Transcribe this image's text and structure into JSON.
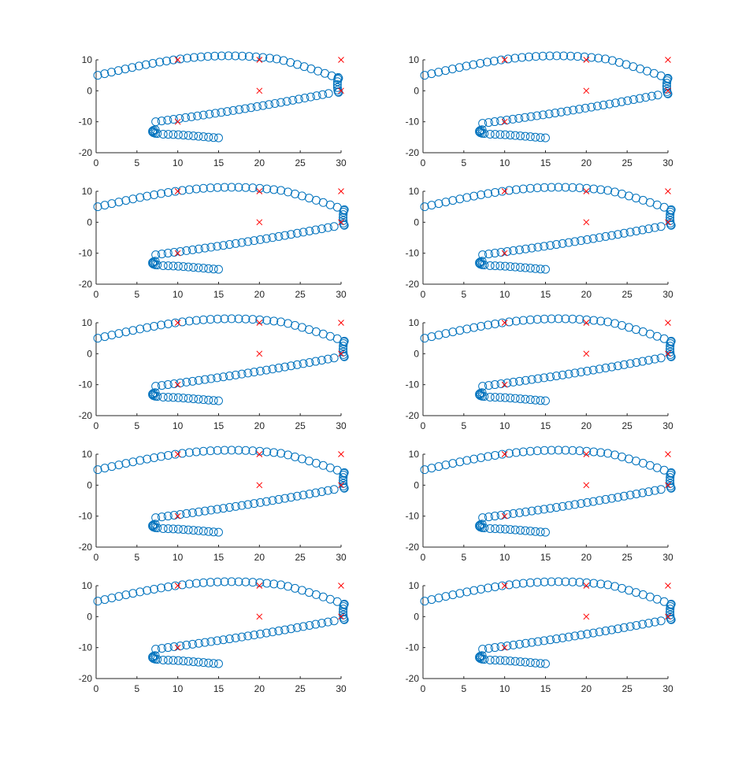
{
  "figure": {
    "background": "#ffffff",
    "grid_rows": 5,
    "grid_cols": 2
  },
  "style": {
    "marker_color": "#0072BD",
    "cross_color": "#FF0000",
    "axis_color": "#262626"
  },
  "chart_data": [
    {
      "type": "scatter",
      "xlim": [
        0,
        30
      ],
      "ylim": [
        -20,
        10
      ],
      "xticks": [
        "0",
        "5",
        "10",
        "15",
        "20",
        "25",
        "30"
      ],
      "yticks": [
        "-20",
        "-10",
        "0",
        "10"
      ],
      "grid": false,
      "title": "",
      "xlabel": "",
      "ylabel": "",
      "spiral": {
        "tip_x": 29.7,
        "tip_y": 2.5
      },
      "series": [
        {
          "marker": "o",
          "points": []
        },
        {
          "marker": "x",
          "points": [
            [
              10,
              10
            ],
            [
              20,
              10
            ],
            [
              30,
              10
            ],
            [
              20,
              0
            ],
            [
              30,
              0
            ],
            [
              10,
              -10
            ]
          ]
        }
      ]
    },
    {
      "type": "scatter",
      "xlim": [
        0,
        30
      ],
      "ylim": [
        -20,
        10
      ],
      "xticks": [
        "0",
        "5",
        "10",
        "15",
        "20",
        "25",
        "30"
      ],
      "yticks": [
        "-20",
        "-10",
        "0",
        "10"
      ],
      "grid": false,
      "title": "",
      "xlabel": "",
      "ylabel": "",
      "spiral": {
        "tip_x": 30.0,
        "tip_y": 2.0
      },
      "series": [
        {
          "marker": "o",
          "points": []
        },
        {
          "marker": "x",
          "points": [
            [
              10,
              10
            ],
            [
              20,
              10
            ],
            [
              30,
              10
            ],
            [
              20,
              0
            ],
            [
              30,
              0
            ],
            [
              10,
              -10
            ]
          ]
        }
      ]
    },
    {
      "type": "scatter",
      "xlim": [
        0,
        30
      ],
      "ylim": [
        -20,
        10
      ],
      "xticks": [
        "0",
        "5",
        "10",
        "15",
        "20",
        "25",
        "30"
      ],
      "yticks": [
        "-20",
        "-10",
        "0",
        "10"
      ],
      "grid": false,
      "title": "",
      "xlabel": "",
      "ylabel": "",
      "spiral": {
        "tip_x": 30.4,
        "tip_y": 2.0
      },
      "series": [
        {
          "marker": "o",
          "points": []
        },
        {
          "marker": "x",
          "points": [
            [
              10,
              10
            ],
            [
              20,
              10
            ],
            [
              30,
              10
            ],
            [
              20,
              0
            ],
            [
              30,
              0
            ],
            [
              10,
              -10
            ]
          ]
        }
      ]
    },
    {
      "type": "scatter",
      "xlim": [
        0,
        30
      ],
      "ylim": [
        -20,
        10
      ],
      "xticks": [
        "0",
        "5",
        "10",
        "15",
        "20",
        "25",
        "30"
      ],
      "yticks": [
        "-20",
        "-10",
        "0",
        "10"
      ],
      "grid": false,
      "title": "",
      "xlabel": "",
      "ylabel": "",
      "spiral": {
        "tip_x": 30.4,
        "tip_y": 2.0
      },
      "series": [
        {
          "marker": "o",
          "points": []
        },
        {
          "marker": "x",
          "points": [
            [
              10,
              10
            ],
            [
              20,
              10
            ],
            [
              30,
              10
            ],
            [
              20,
              0
            ],
            [
              30,
              0
            ],
            [
              10,
              -10
            ]
          ]
        }
      ]
    },
    {
      "type": "scatter",
      "xlim": [
        0,
        30
      ],
      "ylim": [
        -20,
        10
      ],
      "xticks": [
        "0",
        "5",
        "10",
        "15",
        "20",
        "25",
        "30"
      ],
      "yticks": [
        "-20",
        "-10",
        "0",
        "10"
      ],
      "grid": false,
      "title": "",
      "xlabel": "",
      "ylabel": "",
      "spiral": {
        "tip_x": 30.4,
        "tip_y": 2.0
      },
      "series": [
        {
          "marker": "o",
          "points": []
        },
        {
          "marker": "x",
          "points": [
            [
              10,
              10
            ],
            [
              20,
              10
            ],
            [
              30,
              10
            ],
            [
              20,
              0
            ],
            [
              30,
              0
            ],
            [
              10,
              -10
            ]
          ]
        }
      ]
    },
    {
      "type": "scatter",
      "xlim": [
        0,
        30
      ],
      "ylim": [
        -20,
        10
      ],
      "xticks": [
        "0",
        "5",
        "10",
        "15",
        "20",
        "25",
        "30"
      ],
      "yticks": [
        "-20",
        "-10",
        "0",
        "10"
      ],
      "grid": false,
      "title": "",
      "xlabel": "",
      "ylabel": "",
      "spiral": {
        "tip_x": 30.4,
        "tip_y": 2.0
      },
      "series": [
        {
          "marker": "o",
          "points": []
        },
        {
          "marker": "x",
          "points": [
            [
              10,
              10
            ],
            [
              20,
              10
            ],
            [
              30,
              10
            ],
            [
              20,
              0
            ],
            [
              30,
              0
            ],
            [
              10,
              -10
            ]
          ]
        }
      ]
    },
    {
      "type": "scatter",
      "xlim": [
        0,
        30
      ],
      "ylim": [
        -20,
        10
      ],
      "xticks": [
        "0",
        "5",
        "10",
        "15",
        "20",
        "25",
        "30"
      ],
      "yticks": [
        "-20",
        "-10",
        "0",
        "10"
      ],
      "grid": false,
      "title": "",
      "xlabel": "",
      "ylabel": "",
      "spiral": {
        "tip_x": 30.4,
        "tip_y": 2.0
      },
      "series": [
        {
          "marker": "o",
          "points": []
        },
        {
          "marker": "x",
          "points": [
            [
              10,
              10
            ],
            [
              20,
              10
            ],
            [
              30,
              10
            ],
            [
              20,
              0
            ],
            [
              30,
              0
            ],
            [
              10,
              -10
            ]
          ]
        }
      ]
    },
    {
      "type": "scatter",
      "xlim": [
        0,
        30
      ],
      "ylim": [
        -20,
        10
      ],
      "xticks": [
        "0",
        "5",
        "10",
        "15",
        "20",
        "25",
        "30"
      ],
      "yticks": [
        "-20",
        "-10",
        "0",
        "10"
      ],
      "grid": false,
      "title": "",
      "xlabel": "",
      "ylabel": "",
      "spiral": {
        "tip_x": 30.4,
        "tip_y": 2.0
      },
      "series": [
        {
          "marker": "o",
          "points": []
        },
        {
          "marker": "x",
          "points": [
            [
              10,
              10
            ],
            [
              20,
              10
            ],
            [
              30,
              10
            ],
            [
              20,
              0
            ],
            [
              30,
              0
            ],
            [
              10,
              -10
            ]
          ]
        }
      ]
    },
    {
      "type": "scatter",
      "xlim": [
        0,
        30
      ],
      "ylim": [
        -20,
        10
      ],
      "xticks": [
        "0",
        "5",
        "10",
        "15",
        "20",
        "25",
        "30"
      ],
      "yticks": [
        "-20",
        "-10",
        "0",
        "10"
      ],
      "grid": false,
      "title": "",
      "xlabel": "",
      "ylabel": "",
      "spiral": {
        "tip_x": 30.4,
        "tip_y": 2.0
      },
      "series": [
        {
          "marker": "o",
          "points": []
        },
        {
          "marker": "x",
          "points": [
            [
              10,
              10
            ],
            [
              20,
              10
            ],
            [
              30,
              10
            ],
            [
              20,
              0
            ],
            [
              30,
              0
            ],
            [
              10,
              -10
            ]
          ]
        }
      ]
    },
    {
      "type": "scatter",
      "xlim": [
        0,
        30
      ],
      "ylim": [
        -20,
        10
      ],
      "xticks": [
        "0",
        "5",
        "10",
        "15",
        "20",
        "25",
        "30"
      ],
      "yticks": [
        "-20",
        "-10",
        "0",
        "10"
      ],
      "grid": false,
      "title": "",
      "xlabel": "",
      "ylabel": "",
      "spiral": {
        "tip_x": 30.4,
        "tip_y": 2.0
      },
      "series": [
        {
          "marker": "o",
          "points": []
        },
        {
          "marker": "x",
          "points": [
            [
              10,
              10
            ],
            [
              20,
              10
            ],
            [
              30,
              10
            ],
            [
              20,
              0
            ],
            [
              30,
              0
            ],
            [
              10,
              -10
            ]
          ]
        }
      ]
    }
  ]
}
